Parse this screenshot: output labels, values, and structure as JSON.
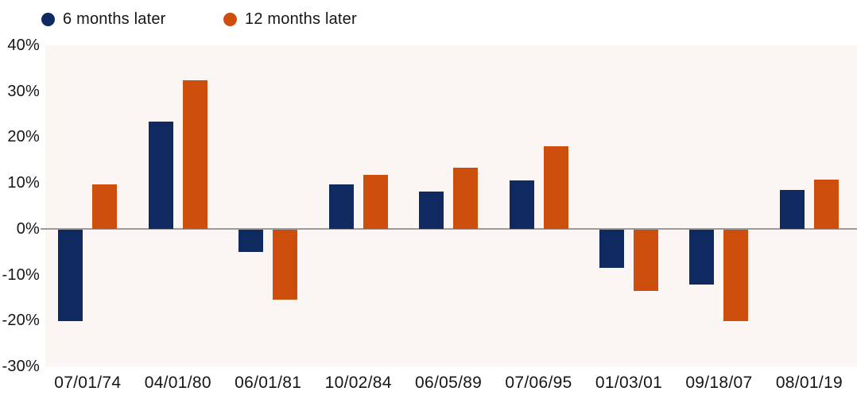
{
  "chart_data": {
    "type": "bar",
    "title": "",
    "xlabel": "",
    "ylabel": "",
    "ylim": [
      -30,
      40
    ],
    "grid": "zero-line-only",
    "legend_position": "top-left",
    "categories": [
      "07/01/74",
      "04/01/80",
      "06/01/81",
      "10/02/84",
      "06/05/89",
      "07/06/95",
      "01/03/01",
      "09/18/07",
      "08/01/19"
    ],
    "series": [
      {
        "name": "6 months later",
        "color": "#0f2a60",
        "values": [
          -20.0,
          23.3,
          -4.8,
          9.7,
          8.1,
          10.5,
          -8.4,
          -12.0,
          8.5
        ]
      },
      {
        "name": "12 months later",
        "color": "#cd4e0d",
        "values": [
          9.7,
          32.3,
          -15.3,
          11.7,
          13.4,
          18.0,
          -13.4,
          -20.0,
          10.8
        ]
      }
    ],
    "y_ticks": [
      {
        "value": 40,
        "label": "40%"
      },
      {
        "value": 30,
        "label": "30%"
      },
      {
        "value": 20,
        "label": "20%"
      },
      {
        "value": 10,
        "label": "10%"
      },
      {
        "value": 0,
        "label": "0%"
      },
      {
        "value": -10,
        "label": "-10%"
      },
      {
        "value": -20,
        "label": "-20%"
      },
      {
        "value": -30,
        "label": "-30%"
      }
    ],
    "colors": {
      "plot_background": "#fbf5f3",
      "page_background": "#ffffff",
      "zero_line": "#9b9b9b",
      "text": "#161616"
    }
  }
}
